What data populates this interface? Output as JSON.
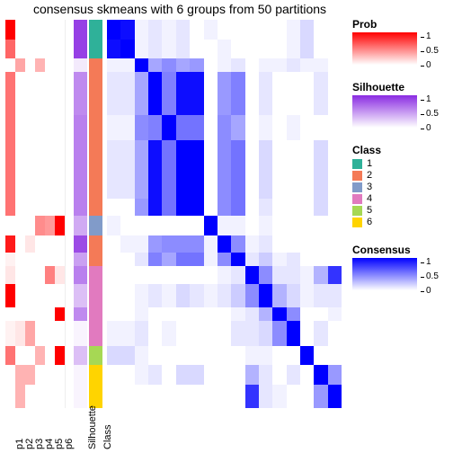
{
  "title": "consensus skmeans with 6 groups from 50 partitions",
  "layout": {
    "n": 17,
    "row_heights_pct": [
      5.0,
      5.0,
      3.5,
      11.0,
      6.5,
      15.0,
      4.5,
      5.0,
      4.5,
      3.5,
      4.5,
      6.0,
      3.5,
      6.5,
      5.0,
      5.0,
      6.0
    ]
  },
  "palette": {
    "prob": {
      "lo": "#ffffff",
      "hi": "#ff0000"
    },
    "silh": {
      "lo": "#ffffff",
      "hi": "#8a2be2"
    },
    "cons": {
      "lo": "#ffffff",
      "hi": "#0000ff"
    },
    "class": {
      "1": "#2fb199",
      "2": "#f47a57",
      "3": "#819bc9",
      "4": "#e17abf",
      "5": "#a6d854",
      "6": "#ffd400"
    }
  },
  "x_labels": [
    "p1",
    "p2",
    "p3",
    "p4",
    "p5",
    "p6",
    "Silhouette",
    "Class"
  ],
  "p_columns": {
    "p1": [
      1.0,
      0.6,
      0.0,
      0.55,
      0.55,
      0.55,
      0.55,
      0.0,
      0.9,
      0.05,
      0.1,
      1.0,
      0.0,
      0.05,
      0.55,
      0.0,
      0.0
    ],
    "p2": [
      0.0,
      0.0,
      0.35,
      0.0,
      0.0,
      0.0,
      0.0,
      0.0,
      0.0,
      0.0,
      0.0,
      0.0,
      0.0,
      0.1,
      0.0,
      0.3,
      0.3
    ],
    "p3": [
      0.0,
      0.0,
      0.0,
      0.0,
      0.0,
      0.0,
      0.0,
      0.0,
      0.1,
      0.0,
      0.0,
      0.0,
      0.0,
      0.35,
      0.0,
      0.3,
      0.0
    ],
    "p4": [
      0.0,
      0.0,
      0.3,
      0.0,
      0.0,
      0.0,
      0.0,
      0.45,
      0.0,
      0.0,
      0.0,
      0.0,
      0.0,
      0.0,
      0.3,
      0.0,
      0.0
    ],
    "p5": [
      0.0,
      0.0,
      0.0,
      0.0,
      0.0,
      0.0,
      0.0,
      0.4,
      0.0,
      0.0,
      0.5,
      0.0,
      0.0,
      0.0,
      0.0,
      0.0,
      0.0
    ],
    "p6": [
      0.0,
      0.0,
      0.0,
      0.0,
      0.0,
      0.0,
      0.0,
      1.0,
      0.0,
      0.0,
      0.1,
      0.0,
      1.0,
      0.0,
      1.0,
      0.0,
      0.0
    ]
  },
  "silhouette": [
    0.9,
    0.9,
    0.1,
    0.55,
    0.6,
    0.6,
    0.6,
    0.4,
    0.85,
    0.45,
    0.6,
    0.3,
    0.55,
    0.05,
    0.3,
    0.05,
    0.05
  ],
  "class": [
    1,
    1,
    2,
    2,
    2,
    2,
    2,
    3,
    2,
    2,
    4,
    4,
    4,
    4,
    5,
    6,
    6
  ],
  "consensus": [
    [
      1.0,
      0.95,
      0.05,
      0.1,
      0.05,
      0.1,
      0.0,
      0.05,
      0.0,
      0.0,
      0.0,
      0.0,
      0.0,
      0.05,
      0.15,
      0.0,
      0.0
    ],
    [
      0.95,
      1.0,
      0.05,
      0.1,
      0.05,
      0.1,
      0.0,
      0.0,
      0.05,
      0.0,
      0.0,
      0.0,
      0.0,
      0.05,
      0.15,
      0.0,
      0.0
    ],
    [
      0.05,
      0.05,
      1.0,
      0.35,
      0.45,
      0.35,
      0.4,
      0.0,
      0.05,
      0.1,
      0.0,
      0.05,
      0.05,
      0.1,
      0.05,
      0.05,
      0.0
    ],
    [
      0.1,
      0.1,
      0.35,
      1.0,
      0.5,
      0.95,
      0.95,
      0.0,
      0.4,
      0.5,
      0.0,
      0.1,
      0.0,
      0.0,
      0.0,
      0.1,
      0.0
    ],
    [
      0.05,
      0.05,
      0.45,
      0.5,
      1.0,
      0.55,
      0.55,
      0.0,
      0.45,
      0.35,
      0.0,
      0.05,
      0.0,
      0.05,
      0.0,
      0.0,
      0.0
    ],
    [
      0.1,
      0.1,
      0.35,
      0.95,
      0.55,
      1.0,
      1.0,
      0.0,
      0.45,
      0.55,
      0.0,
      0.15,
      0.0,
      0.0,
      0.0,
      0.15,
      0.0
    ],
    [
      0.0,
      0.0,
      0.4,
      0.95,
      0.55,
      1.0,
      1.0,
      0.0,
      0.45,
      0.55,
      0.0,
      0.1,
      0.0,
      0.0,
      0.0,
      0.15,
      0.0
    ],
    [
      0.05,
      0.0,
      0.0,
      0.0,
      0.0,
      0.0,
      0.0,
      1.0,
      0.05,
      0.05,
      0.0,
      0.05,
      0.0,
      0.0,
      0.0,
      0.0,
      0.0
    ],
    [
      0.0,
      0.05,
      0.05,
      0.4,
      0.45,
      0.45,
      0.45,
      0.05,
      1.0,
      0.45,
      0.05,
      0.1,
      0.0,
      0.0,
      0.0,
      0.0,
      0.0
    ],
    [
      0.0,
      0.0,
      0.1,
      0.5,
      0.35,
      0.55,
      0.55,
      0.05,
      0.45,
      1.0,
      0.1,
      0.2,
      0.05,
      0.1,
      0.0,
      0.0,
      0.0
    ],
    [
      0.0,
      0.0,
      0.0,
      0.0,
      0.0,
      0.0,
      0.0,
      0.0,
      0.05,
      0.1,
      1.0,
      0.45,
      0.1,
      0.1,
      0.05,
      0.3,
      0.8
    ],
    [
      0.0,
      0.0,
      0.05,
      0.1,
      0.05,
      0.15,
      0.1,
      0.05,
      0.1,
      0.2,
      0.45,
      1.0,
      0.3,
      0.15,
      0.05,
      0.1,
      0.1
    ],
    [
      0.0,
      0.0,
      0.05,
      0.0,
      0.0,
      0.0,
      0.0,
      0.0,
      0.0,
      0.05,
      0.1,
      0.3,
      1.0,
      0.45,
      0.0,
      0.0,
      0.05
    ],
    [
      0.05,
      0.05,
      0.1,
      0.0,
      0.05,
      0.0,
      0.0,
      0.0,
      0.0,
      0.1,
      0.1,
      0.15,
      0.45,
      1.0,
      0.0,
      0.1,
      0.0
    ],
    [
      0.15,
      0.15,
      0.05,
      0.0,
      0.0,
      0.0,
      0.0,
      0.0,
      0.0,
      0.0,
      0.05,
      0.05,
      0.0,
      0.0,
      1.0,
      0.0,
      0.0
    ],
    [
      0.0,
      0.0,
      0.05,
      0.1,
      0.0,
      0.15,
      0.15,
      0.0,
      0.0,
      0.0,
      0.3,
      0.1,
      0.0,
      0.1,
      0.0,
      1.0,
      0.4
    ],
    [
      0.0,
      0.0,
      0.0,
      0.0,
      0.0,
      0.0,
      0.0,
      0.0,
      0.0,
      0.0,
      0.8,
      0.1,
      0.05,
      0.0,
      0.0,
      0.4,
      1.0
    ]
  ],
  "legends": {
    "prob": {
      "title": "Prob",
      "ticks": [
        1,
        0.5,
        0
      ]
    },
    "silh": {
      "title": "Silhouette",
      "ticks": [
        1,
        0.5,
        0
      ]
    },
    "class": {
      "title": "Class",
      "items": [
        "1",
        "2",
        "3",
        "4",
        "5",
        "6"
      ]
    },
    "cons": {
      "title": "Consensus",
      "ticks": [
        1,
        0.5,
        0
      ]
    }
  }
}
